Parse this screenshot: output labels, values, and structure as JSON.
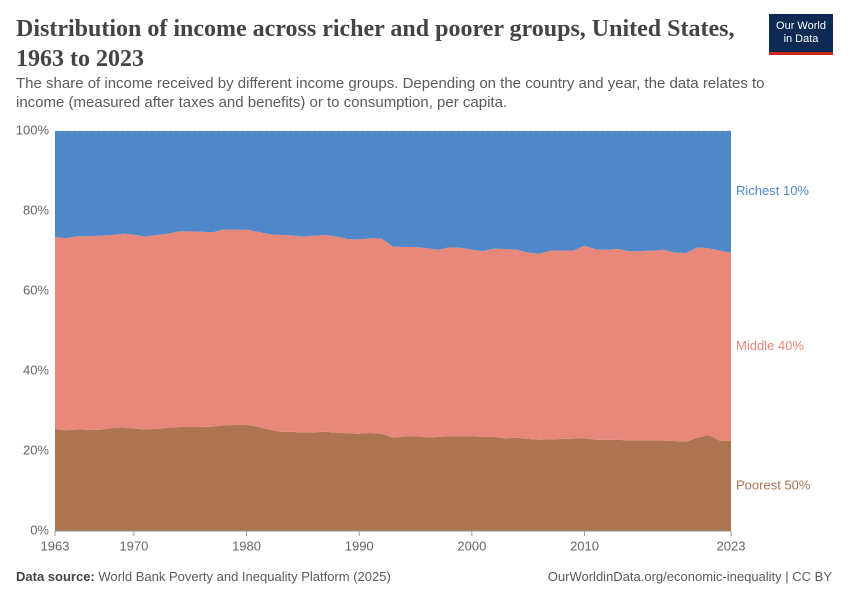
{
  "logo": [
    "Our World",
    "in Data"
  ],
  "footer": {
    "source_label": "Data source:",
    "source": "World Bank Poverty and Inequality Platform (2025)",
    "link": "OurWorldinData.org/economic-inequality | CC BY"
  },
  "chart_data": {
    "type": "stacked_area",
    "title": "Distribution of income across richer and poorer groups, United States, 1963 to 2023",
    "subtitle": "The share of income received by different income groups. Depending on the country and year, the data relates to income (measured after taxes and benefits) or to consumption, per capita.",
    "x": [
      1963,
      1964,
      1965,
      1966,
      1967,
      1968,
      1969,
      1970,
      1971,
      1972,
      1973,
      1974,
      1975,
      1976,
      1977,
      1978,
      1979,
      1980,
      1981,
      1982,
      1983,
      1984,
      1985,
      1986,
      1987,
      1988,
      1989,
      1990,
      1991,
      1992,
      1993,
      1994,
      1995,
      1996,
      1997,
      1998,
      1999,
      2000,
      2001,
      2002,
      2003,
      2004,
      2005,
      2006,
      2007,
      2008,
      2009,
      2010,
      2011,
      2012,
      2013,
      2014,
      2015,
      2016,
      2017,
      2018,
      2019,
      2020,
      2021,
      2022,
      2023
    ],
    "series": [
      {
        "name": "Poorest 50%",
        "color": "#ad7452",
        "values": [
          25.5,
          25.2,
          25.4,
          25.3,
          25.3,
          25.7,
          25.9,
          25.6,
          25.4,
          25.5,
          25.8,
          26.0,
          26.0,
          26.0,
          26.1,
          26.4,
          26.5,
          26.5,
          26.1,
          25.3,
          24.8,
          24.8,
          24.6,
          24.7,
          24.8,
          24.6,
          24.4,
          24.3,
          24.5,
          24.3,
          23.3,
          23.6,
          23.7,
          23.4,
          23.5,
          23.7,
          23.6,
          23.7,
          23.5,
          23.5,
          23.2,
          23.3,
          23.0,
          22.8,
          22.9,
          23.0,
          23.1,
          23.2,
          22.8,
          22.8,
          22.8,
          22.6,
          22.7,
          22.7,
          22.6,
          22.5,
          22.3,
          23.3,
          24.0,
          22.6,
          22.5
        ]
      },
      {
        "name": "Middle 40%",
        "color": "#e8887a",
        "values": [
          48.0,
          48.0,
          48.3,
          48.4,
          48.5,
          48.3,
          48.4,
          48.5,
          48.2,
          48.5,
          48.5,
          48.9,
          48.9,
          48.8,
          48.6,
          49.0,
          48.8,
          48.8,
          48.7,
          48.9,
          49.2,
          49.1,
          49.0,
          49.1,
          49.2,
          49.0,
          48.6,
          48.6,
          48.7,
          48.8,
          47.8,
          47.4,
          47.3,
          47.3,
          46.8,
          47.2,
          47.2,
          46.6,
          46.5,
          47.1,
          47.3,
          47.0,
          46.6,
          46.5,
          47.2,
          47.1,
          47.0,
          48.1,
          47.6,
          47.5,
          47.7,
          47.3,
          47.3,
          47.4,
          47.7,
          47.1,
          47.2,
          47.6,
          46.7,
          47.5,
          47.1
        ]
      },
      {
        "name": "Richest 10%",
        "color": "#5087c8",
        "values": [
          26.5,
          26.8,
          26.3,
          26.3,
          26.2,
          26.0,
          25.7,
          25.9,
          26.4,
          26.0,
          25.7,
          25.1,
          25.1,
          25.2,
          25.3,
          24.6,
          24.7,
          24.7,
          25.2,
          25.8,
          26.0,
          26.1,
          26.4,
          26.2,
          26.0,
          26.4,
          27.0,
          27.1,
          26.8,
          26.9,
          28.9,
          29.0,
          29.0,
          29.3,
          29.7,
          29.1,
          29.2,
          29.7,
          30.0,
          29.4,
          29.5,
          29.7,
          30.4,
          30.7,
          29.9,
          29.9,
          29.9,
          28.7,
          29.6,
          29.7,
          29.5,
          30.1,
          30.0,
          29.9,
          29.7,
          30.4,
          30.5,
          29.1,
          29.3,
          29.9,
          30.4
        ]
      }
    ],
    "xlim": [
      1963,
      2023
    ],
    "xticks": [
      1963,
      1970,
      1980,
      1990,
      2000,
      2010,
      2023
    ],
    "ylim": [
      0,
      100
    ],
    "yticks": [
      {
        "value": 0,
        "label": "0%"
      },
      {
        "value": 20,
        "label": "20%"
      },
      {
        "value": 40,
        "label": "40%"
      },
      {
        "value": 60,
        "label": "60%"
      },
      {
        "value": 80,
        "label": "80%"
      },
      {
        "value": 100,
        "label": "100%"
      }
    ],
    "grid": true,
    "legend": "right"
  }
}
